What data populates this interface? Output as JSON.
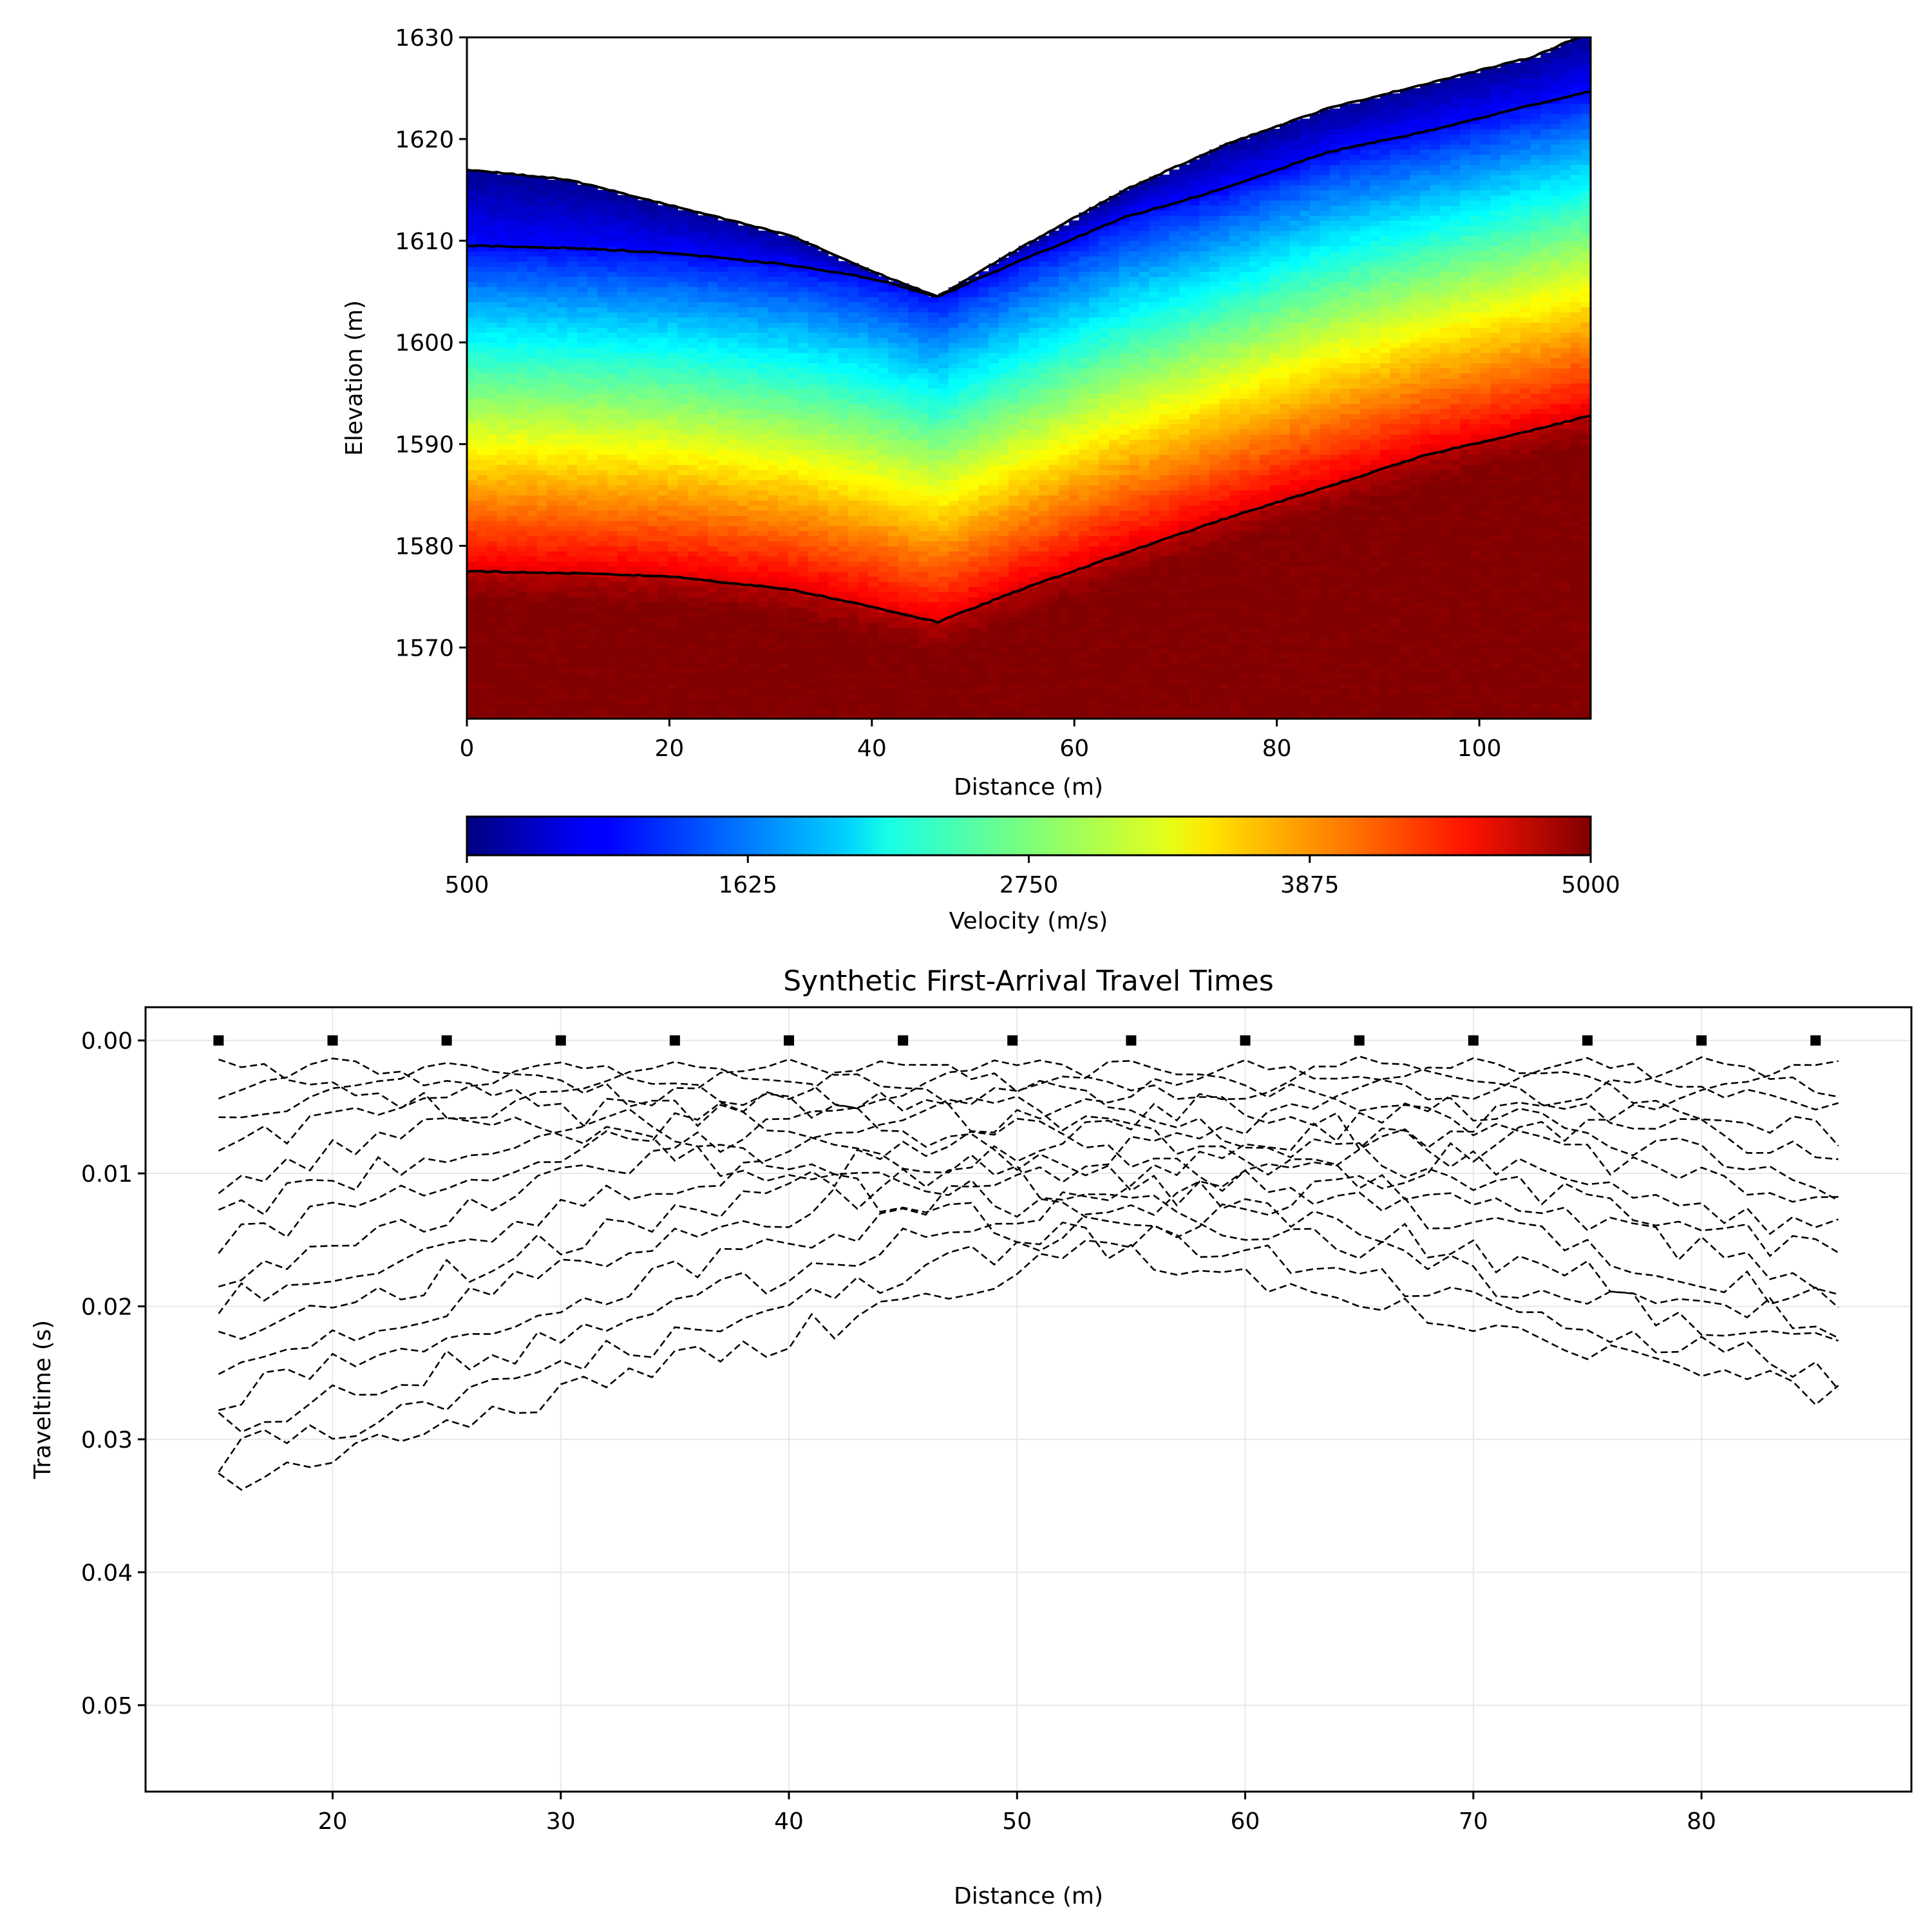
{
  "chart_data": [
    {
      "type": "heatmap",
      "title": "",
      "xlabel": "Distance (m)",
      "ylabel": "Elevation (m)",
      "xlim": [
        0,
        111
      ],
      "ylim": [
        1563,
        1630
      ],
      "xticks": [
        0,
        20,
        40,
        60,
        80,
        100
      ],
      "yticks": [
        1570,
        1580,
        1590,
        1600,
        1610,
        1620,
        1630
      ],
      "colormap": "jet",
      "colorbar": {
        "label": "Velocity (m/s)",
        "min": 500,
        "max": 5000,
        "ticks": [
          500,
          1625,
          2750,
          3875,
          5000
        ]
      },
      "surface": {
        "x": [
          0,
          10,
          20,
          32,
          40,
          46.5,
          55,
          65,
          75,
          85,
          95,
          105,
          111
        ],
        "y": [
          1617,
          1616,
          1613.5,
          1610.5,
          1607,
          1604.5,
          1609.5,
          1615,
          1619.5,
          1623,
          1625.5,
          1628,
          1630.5
        ]
      },
      "boundary_upper": {
        "x": [
          0,
          10,
          20,
          32,
          40,
          46.5,
          55,
          65,
          75,
          85,
          95,
          105,
          111
        ],
        "y": [
          1609.5,
          1609.3,
          1608.8,
          1607.6,
          1606.3,
          1604.5,
          1608.2,
          1612.3,
          1615.2,
          1618.7,
          1620.8,
          1623.3,
          1624.7
        ]
      },
      "boundary_lower": {
        "x": [
          0,
          10,
          20,
          32,
          40,
          46.5,
          55,
          65,
          75,
          85,
          95,
          105,
          111
        ],
        "y": [
          1577.5,
          1577.3,
          1577,
          1575.7,
          1574,
          1572.5,
          1575.8,
          1579.3,
          1582.7,
          1585.8,
          1589,
          1591.3,
          1592.8
        ]
      }
    },
    {
      "type": "line",
      "title": "Synthetic First-Arrival Travel Times",
      "xlabel": "Distance (m)",
      "ylabel": "Traveltime (s)",
      "xlim": [
        11.8,
        89.2
      ],
      "ylim": [
        0.0565,
        -0.0025
      ],
      "y_inverted": true,
      "grid": true,
      "xticks": [
        20,
        30,
        40,
        50,
        60,
        70,
        80
      ],
      "yticks": [
        0,
        0.01,
        0.02,
        0.03,
        0.04,
        0.05
      ],
      "ytick_labels": [
        "0.00",
        "0.01",
        "0.02",
        "0.03",
        "0.04",
        "0.05"
      ],
      "line_style": "dashed",
      "receivers": {
        "start": 15,
        "end": 86,
        "step": 1
      },
      "shots": [
        15,
        20,
        25,
        30,
        35,
        40,
        45,
        49.8,
        55,
        60,
        65,
        70,
        75,
        80,
        85
      ],
      "slowness_near": 0.00046,
      "slowness_far": 0.00036,
      "noise_amplitude": 0.0012
    }
  ]
}
